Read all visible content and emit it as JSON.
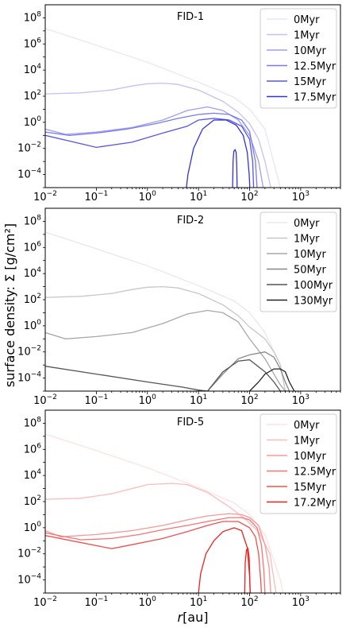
{
  "figure": {
    "ylabel": "surface density: Σ [g/cm²]",
    "xlabel": "r [au]"
  },
  "chart_data": [
    {
      "type": "line",
      "title": "FID-1",
      "xscale": "log",
      "yscale": "log",
      "xlim": [
        0.01,
        6000
      ],
      "ylim": [
        1e-05,
        1000000000
      ],
      "xticks": [
        {
          "v": 0.01,
          "label": "10^-2"
        },
        {
          "v": 0.1,
          "label": "10^-1"
        },
        {
          "v": 1,
          "label": "10^0"
        },
        {
          "v": 10,
          "label": "10^1"
        },
        {
          "v": 100,
          "label": "10^2"
        },
        {
          "v": 1000,
          "label": "10^3"
        }
      ],
      "yticks": [
        {
          "v": 0.0001,
          "label": "10^-4"
        },
        {
          "v": 0.01,
          "label": "10^-2"
        },
        {
          "v": 1,
          "label": "10^0"
        },
        {
          "v": 100,
          "label": "10^2"
        },
        {
          "v": 10000,
          "label": "10^4"
        },
        {
          "v": 1000000,
          "label": "10^6"
        },
        {
          "v": 100000000,
          "label": "10^8"
        }
      ],
      "legend_position": "top-right",
      "series": [
        {
          "name": "0Myr",
          "color": "#e6e6fc",
          "x": [
            0.01,
            0.1,
            1,
            10,
            50,
            100,
            200,
            400
          ],
          "y": [
            15000000,
            800000,
            40000,
            1200,
            80,
            10,
            0.3,
            1e-05
          ]
        },
        {
          "name": "1Myr",
          "color": "#c2c2f7",
          "x": [
            0.01,
            0.05,
            0.2,
            0.5,
            1,
            2,
            4,
            10,
            30,
            60,
            100,
            150,
            200,
            260
          ],
          "y": [
            150,
            180,
            300,
            600,
            900,
            1000,
            800,
            300,
            40,
            6,
            0.8,
            0.05,
            0.001,
            1e-05
          ]
        },
        {
          "name": "10Myr",
          "color": "#9e9ef2",
          "x": [
            0.01,
            0.025,
            0.1,
            0.5,
            2,
            6,
            15,
            30,
            60,
            100,
            150,
            185
          ],
          "y": [
            0.3,
            0.12,
            0.18,
            0.4,
            1.5,
            8,
            15,
            8,
            1.5,
            0.1,
            0.001,
            1e-05
          ]
        },
        {
          "name": "12.5Myr",
          "color": "#7a7aed",
          "x": [
            0.01,
            0.03,
            0.1,
            0.4,
            1.5,
            4,
            10,
            20,
            40,
            70,
            100,
            130,
            140
          ],
          "y": [
            0.18,
            0.1,
            0.15,
            0.3,
            0.8,
            2,
            4,
            5,
            4,
            1.5,
            0.2,
            0.001,
            1e-05
          ]
        },
        {
          "name": "15Myr",
          "color": "#5656e8",
          "x": [
            0.01,
            0.1,
            0.5,
            2,
            6,
            10,
            20,
            40,
            70,
            100,
            115,
            120
          ],
          "y": [
            0.1,
            0.012,
            0.03,
            0.15,
            0.5,
            1.5,
            2,
            1.5,
            0.5,
            0.05,
            0.001,
            1e-05
          ]
        },
        {
          "name": "17.5Myr",
          "color": "#3232e2",
          "x": [
            5.8,
            6.2,
            8,
            12,
            20,
            35,
            55,
            75,
            90,
            98,
            101
          ],
          "y": [
            1e-05,
            0.0001,
            0.01,
            0.3,
            1.5,
            1.5,
            0.6,
            0.1,
            0.005,
            0.0001,
            1e-05
          ]
        },
        {
          "name": "",
          "color": "#3232e2",
          "x": [
            46.5,
            47.5,
            49,
            52,
            54.5,
            56,
            57
          ],
          "y": [
            1e-05,
            0.001,
            0.006,
            0.008,
            0.005,
            0.0005,
            1e-05
          ]
        }
      ]
    },
    {
      "type": "line",
      "title": "FID-2",
      "xscale": "log",
      "yscale": "log",
      "xlim": [
        0.01,
        6000
      ],
      "ylim": [
        1e-05,
        1000000000
      ],
      "xticks": [
        {
          "v": 0.01,
          "label": "10^-2"
        },
        {
          "v": 0.1,
          "label": "10^-1"
        },
        {
          "v": 1,
          "label": "10^0"
        },
        {
          "v": 10,
          "label": "10^1"
        },
        {
          "v": 100,
          "label": "10^2"
        },
        {
          "v": 1000,
          "label": "10^3"
        }
      ],
      "yticks": [
        {
          "v": 0.0001,
          "label": "10^-4"
        },
        {
          "v": 0.01,
          "label": "10^-2"
        },
        {
          "v": 1,
          "label": "10^0"
        },
        {
          "v": 100,
          "label": "10^2"
        },
        {
          "v": 10000,
          "label": "10^4"
        },
        {
          "v": 1000000,
          "label": "10^6"
        },
        {
          "v": 100000000,
          "label": "10^8"
        }
      ],
      "legend_position": "top-right",
      "series": [
        {
          "name": "0Myr",
          "color": "#e8e8e8",
          "x": [
            0.01,
            0.1,
            1,
            10,
            50,
            100,
            200,
            400,
            500
          ],
          "y": [
            15000000,
            800000,
            40000,
            1200,
            80,
            10,
            0.3,
            0.001,
            1e-05
          ]
        },
        {
          "name": "1Myr",
          "color": "#c8c8c8",
          "x": [
            0.01,
            0.05,
            0.2,
            0.5,
            1,
            2,
            4,
            10,
            30,
            60,
            100,
            200,
            300,
            400,
            500
          ],
          "y": [
            150,
            180,
            300,
            600,
            900,
            1000,
            800,
            300,
            40,
            6,
            0.8,
            0.1,
            0.01,
            0.001,
            1e-05
          ]
        },
        {
          "name": "10Myr",
          "color": "#a8a8a8",
          "x": [
            0.01,
            0.025,
            0.1,
            0.5,
            2,
            6,
            15,
            30,
            60,
            100,
            200,
            300,
            400,
            500
          ],
          "y": [
            0.3,
            0.1,
            0.15,
            0.3,
            1.5,
            8,
            15,
            10,
            2,
            0.1,
            0.003,
            0.0002,
            3e-05,
            1e-05
          ]
        },
        {
          "name": "50Myr",
          "color": "#888888",
          "x": [
            15,
            30,
            60,
            100,
            200,
            300,
            400,
            500,
            600
          ],
          "y": [
            1e-05,
            0.0002,
            0.003,
            0.006,
            0.01,
            0.004,
            0.0005,
            5e-05,
            1e-05
          ]
        },
        {
          "name": "100Myr",
          "color": "#555555",
          "x": [
            0.01,
            0.1,
            1,
            5,
            10,
            15,
            30,
            60,
            100,
            200,
            300,
            400,
            500,
            600
          ],
          "y": [
            0.0008,
            0.0002,
            5e-05,
            2e-05,
            1.2e-05,
            1e-05,
            0.0003,
            0.002,
            0.0025,
            0.0003,
            5e-05,
            1e-05,
            1e-05,
            1e-05
          ]
        },
        {
          "name": "130Myr",
          "color": "#222222",
          "x": [
            100,
            150,
            200,
            300,
            400,
            500,
            600,
            750
          ],
          "y": [
            1e-05,
            5e-05,
            0.0002,
            0.0005,
            0.0005,
            0.0003,
            5e-05,
            1e-05
          ]
        }
      ]
    },
    {
      "type": "line",
      "title": "FID-5",
      "xscale": "log",
      "yscale": "log",
      "xlim": [
        0.01,
        6000
      ],
      "ylim": [
        1e-05,
        1000000000
      ],
      "xticks": [
        {
          "v": 0.01,
          "label": "10^-2"
        },
        {
          "v": 0.1,
          "label": "10^-1"
        },
        {
          "v": 1,
          "label": "10^0"
        },
        {
          "v": 10,
          "label": "10^1"
        },
        {
          "v": 100,
          "label": "10^2"
        },
        {
          "v": 1000,
          "label": "10^3"
        }
      ],
      "yticks": [
        {
          "v": 0.0001,
          "label": "10^-4"
        },
        {
          "v": 0.01,
          "label": "10^-2"
        },
        {
          "v": 1,
          "label": "10^0"
        },
        {
          "v": 100,
          "label": "10^2"
        },
        {
          "v": 10000,
          "label": "10^4"
        },
        {
          "v": 1000000,
          "label": "10^6"
        },
        {
          "v": 100000000,
          "label": "10^8"
        }
      ],
      "legend_position": "top-right",
      "series": [
        {
          "name": "0Myr",
          "color": "#fde2e2",
          "x": [
            0.01,
            0.1,
            1,
            10,
            50,
            100,
            200,
            400,
            450
          ],
          "y": [
            15000000,
            800000,
            40000,
            1200,
            80,
            10,
            0.3,
            0.0001,
            1e-05
          ]
        },
        {
          "name": "1Myr",
          "color": "#fbbcbc",
          "x": [
            0.01,
            0.05,
            0.2,
            0.5,
            1,
            3,
            6,
            15,
            40,
            80,
            150,
            250,
            330
          ],
          "y": [
            150,
            180,
            400,
            1000,
            2000,
            2500,
            2000,
            500,
            40,
            5,
            0.5,
            0.01,
            1e-05
          ]
        },
        {
          "name": "10Myr",
          "color": "#f89898",
          "x": [
            0.01,
            0.02,
            0.1,
            0.5,
            2,
            6,
            15,
            40,
            70,
            100,
            150,
            200,
            240,
            260
          ],
          "y": [
            0.6,
            0.2,
            0.3,
            0.6,
            1.5,
            4,
            8,
            12,
            10,
            6,
            1.5,
            0.05,
            0.001,
            1e-05
          ]
        },
        {
          "name": "12.5Myr",
          "color": "#f57474",
          "x": [
            0.01,
            0.05,
            0.2,
            0.7,
            2,
            6,
            15,
            40,
            70,
            100,
            140,
            170,
            190,
            200
          ],
          "y": [
            0.4,
            0.12,
            0.15,
            0.3,
            0.7,
            1.5,
            3,
            6,
            6,
            4,
            1,
            0.05,
            0.0005,
            1e-05
          ]
        },
        {
          "name": "15Myr",
          "color": "#f25050",
          "x": [
            0.01,
            0.2,
            0.5,
            2,
            6,
            15,
            30,
            60,
            100,
            130,
            150,
            165,
            170
          ],
          "y": [
            0.25,
            0.025,
            0.05,
            0.15,
            0.5,
            1.5,
            3,
            3,
            1,
            0.2,
            0.01,
            0.0001,
            1e-05
          ]
        },
        {
          "name": "17.2Myr",
          "color": "#ee2020",
          "x": [
            10,
            11,
            14,
            20,
            30,
            50,
            70,
            90,
            100,
            103
          ],
          "y": [
            1e-05,
            0.0003,
            0.01,
            0.1,
            0.5,
            1.0,
            0.6,
            0.03,
            0.0002,
            1e-05
          ]
        },
        {
          "name": "",
          "color": "#ee2020",
          "x": [
            80,
            82,
            87,
            93,
            98,
            101,
            103
          ],
          "y": [
            1e-05,
            0.002,
            0.02,
            0.025,
            0.005,
            0.0001,
            1e-05
          ]
        }
      ]
    }
  ]
}
